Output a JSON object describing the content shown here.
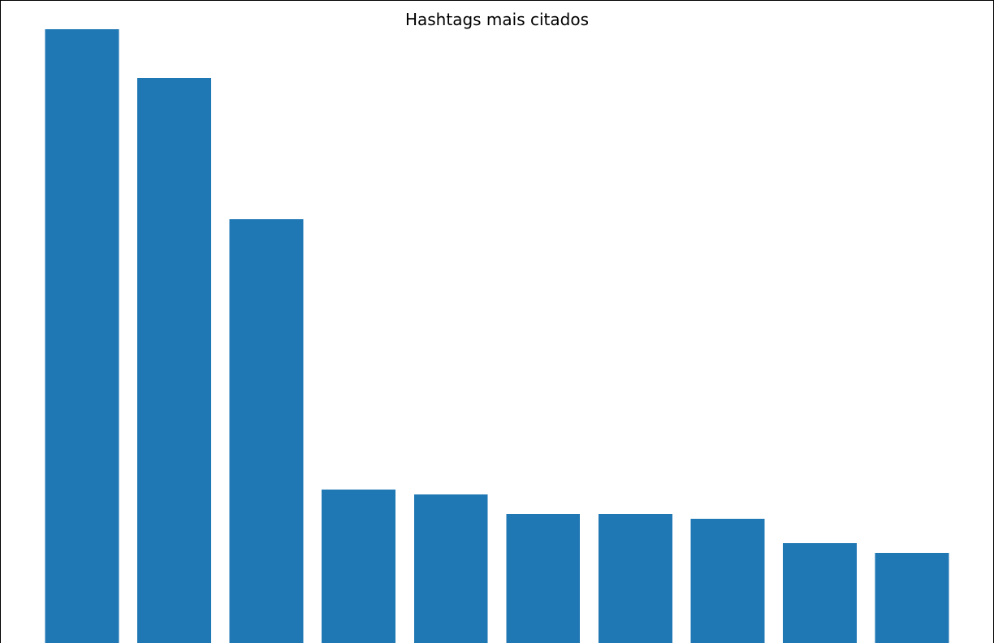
{
  "chart_data": {
    "type": "bar",
    "title": "Hashtags mais citados",
    "xlabel": "",
    "ylabel": "",
    "categories": [
      "",
      "",
      "",
      "",
      "",
      "",
      "",
      "",
      "",
      ""
    ],
    "values": [
      126,
      116,
      87,
      31.5,
      30.5,
      26.5,
      26.5,
      25.5,
      20.5,
      18.5
    ],
    "ylim": [
      0,
      132
    ],
    "bar_color": "#1f77b4",
    "grid": false,
    "legend": "none"
  }
}
